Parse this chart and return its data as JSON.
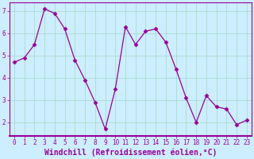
{
  "x": [
    0,
    1,
    2,
    3,
    4,
    5,
    6,
    7,
    8,
    9,
    10,
    11,
    12,
    13,
    14,
    15,
    16,
    17,
    18,
    19,
    20,
    21,
    22,
    23
  ],
  "y": [
    4.7,
    4.9,
    5.5,
    7.1,
    6.9,
    6.2,
    4.8,
    3.9,
    2.9,
    1.7,
    3.5,
    6.3,
    5.5,
    6.1,
    6.2,
    5.6,
    4.4,
    3.1,
    2.0,
    3.2,
    2.7,
    2.6,
    1.9,
    2.1
  ],
  "line_color": "#990099",
  "marker": "D",
  "marker_size": 2.5,
  "bg_color": "#cceeff",
  "grid_color": "#aaddcc",
  "xlabel": "Windchill (Refroidissement éolien,°C)",
  "ylim": [
    1.4,
    7.4
  ],
  "xlim": [
    -0.5,
    23.5
  ],
  "yticks": [
    2,
    3,
    4,
    5,
    6,
    7
  ],
  "xticks": [
    0,
    1,
    2,
    3,
    4,
    5,
    6,
    7,
    8,
    9,
    10,
    11,
    12,
    13,
    14,
    15,
    16,
    17,
    18,
    19,
    20,
    21,
    22,
    23
  ],
  "tick_fontsize": 5.5,
  "xlabel_fontsize": 7,
  "axis_color": "#990099"
}
